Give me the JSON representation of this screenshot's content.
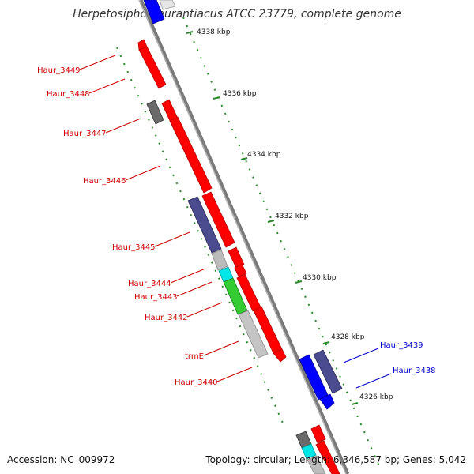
{
  "title": "Herpetosiphon aurantiacus ATCC 23779, complete genome",
  "accession": "Accession: NC_009972",
  "topology": "Topology: circular; Length: 6,346,587 bp; Genes: 5,042",
  "scale_labels": [
    "4338 kbp",
    "4336 kbp",
    "4334 kbp",
    "4332 kbp",
    "4330 kbp",
    "4328 kbp",
    "4326 kbp"
  ],
  "gene_labels_left": [
    "Haur_3449",
    "Haur_3448",
    "Haur_3447",
    "Haur_3446",
    "Haur_3445",
    "Haur_3444",
    "Haur_3443",
    "Haur_3442",
    "trmE",
    "Haur_3440"
  ],
  "gene_labels_right": [
    "Haur_3439",
    "Haur_3438"
  ],
  "colors": {
    "forward_cds": "#ff0000",
    "reverse_cds": "#0000ff",
    "cog_dark": "#666666",
    "cog_purple": "#4b4b8f",
    "cog_grey": "#bbbbbb",
    "cog_cyan": "#00e5e5",
    "cog_green": "#33cc33",
    "backbone": "#8c8c8c",
    "tick": "#228822",
    "left_label": "#cc0000",
    "right_label": "#0000cc"
  }
}
